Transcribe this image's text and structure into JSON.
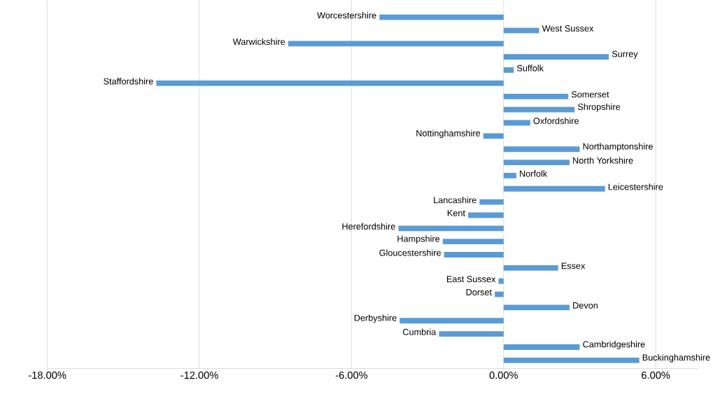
{
  "chart_data": {
    "type": "bar",
    "orientation": "horizontal",
    "color": "#5b9bd5",
    "grid": "x",
    "categories": [
      "Worcestershire",
      "West Sussex",
      "Warwickshire",
      "Surrey",
      "Suffolk",
      "Staffordshire",
      "Somerset",
      "Shropshire",
      "Oxfordshire",
      "Nottinghamshire",
      "Northamptonshire",
      "North Yorkshire",
      "Norfolk",
      "Leicestershire",
      "Lancashire",
      "Kent",
      "Herefordshire",
      "Hampshire",
      "Gloucestershire",
      "Essex",
      "East Sussex",
      "Dorset",
      "Devon",
      "Derbyshire",
      "Cumbria",
      "Cambridgeshire",
      "Buckinghamshire"
    ],
    "values": [
      -4.9,
      1.4,
      -8.5,
      4.15,
      0.4,
      -13.7,
      2.55,
      2.8,
      1.05,
      -0.8,
      3.0,
      2.6,
      0.5,
      4.0,
      -0.95,
      -1.4,
      -4.15,
      -2.4,
      -2.35,
      2.15,
      -0.2,
      -0.35,
      2.6,
      -4.1,
      -2.55,
      3.0,
      5.35
    ],
    "xlim": [
      -18,
      7.7
    ],
    "xticks": [
      {
        "value": -18,
        "label": "-18.00%"
      },
      {
        "value": -12,
        "label": "-12.00%"
      },
      {
        "value": -6,
        "label": "-6.00%"
      },
      {
        "value": 0,
        "label": "0.00%"
      },
      {
        "value": 6,
        "label": "6.00%"
      }
    ]
  }
}
